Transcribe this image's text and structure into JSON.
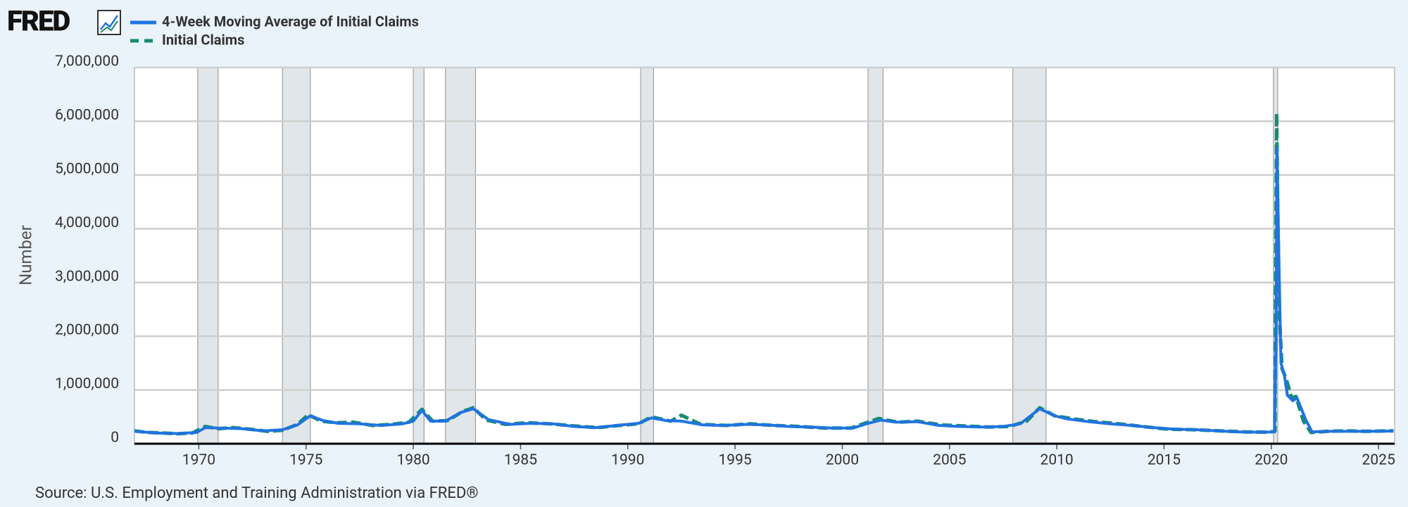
{
  "chart_data": {
    "type": "line",
    "logo": "FRED",
    "ylabel": "Number",
    "source": "Source: U.S. Employment and Training Administration via FRED®",
    "xlim": [
      1967.0,
      2025.75
    ],
    "ylim": [
      0,
      7000000
    ],
    "xticks": [
      1970,
      1975,
      1980,
      1985,
      1990,
      1995,
      2000,
      2005,
      2010,
      2015,
      2020,
      2025
    ],
    "yticks": [
      0,
      {
        "value": 1000000,
        "label": "1,000,000"
      },
      {
        "value": 2000000,
        "label": "2,000,000"
      },
      {
        "value": 3000000,
        "label": "3,000,000"
      },
      {
        "value": 4000000,
        "label": "4,000,000"
      },
      {
        "value": 5000000,
        "label": "5,000,000"
      },
      {
        "value": 6000000,
        "label": "6,000,000"
      },
      {
        "value": 7000000,
        "label": "7,000,000"
      }
    ],
    "grid": true,
    "recessions": [
      [
        1969.95,
        1970.9
      ],
      [
        1973.9,
        1975.2
      ],
      [
        1980.0,
        1980.5
      ],
      [
        1981.5,
        1982.9
      ],
      [
        1990.6,
        1991.2
      ],
      [
        2001.2,
        2001.9
      ],
      [
        2007.95,
        2009.5
      ],
      [
        2020.1,
        2020.3
      ]
    ],
    "series": [
      {
        "name": "Initial Claims",
        "color": "#178b72",
        "dash": true,
        "x": [
          1967.0,
          1967.6,
          1968.3,
          1969.0,
          1969.7,
          1970.3,
          1970.9,
          1971.6,
          1972.4,
          1973.2,
          1973.9,
          1974.6,
          1975.1,
          1975.7,
          1976.4,
          1977.2,
          1978.1,
          1979.0,
          1979.8,
          1980.4,
          1980.9,
          1981.6,
          1982.3,
          1982.8,
          1983.4,
          1984.3,
          1985.3,
          1986.4,
          1987.5,
          1988.6,
          1989.6,
          1990.5,
          1991.1,
          1992.0,
          1992.5,
          1993.4,
          1994.6,
          1995.7,
          1996.8,
          1998.0,
          1999.2,
          2000.4,
          2001.2,
          2001.7,
          2002.6,
          2003.5,
          2004.6,
          2005.7,
          2006.8,
          2007.8,
          2008.6,
          2009.2,
          2009.9,
          2010.8,
          2011.8,
          2012.9,
          2014.0,
          2015.2,
          2016.4,
          2017.6,
          2018.8,
          2019.8,
          2020.17,
          2020.21,
          2020.25,
          2020.3,
          2020.38,
          2020.5,
          2020.7,
          2020.95,
          2021.15,
          2021.5,
          2021.85,
          2022.6,
          2023.5,
          2024.4,
          2025.7
        ],
        "values": [
          240000,
          210000,
          200000,
          185000,
          200000,
          320000,
          280000,
          300000,
          270000,
          230000,
          250000,
          360000,
          540000,
          420000,
          390000,
          400000,
          340000,
          360000,
          400000,
          640000,
          420000,
          430000,
          600000,
          670000,
          440000,
          360000,
          390000,
          370000,
          330000,
          300000,
          340000,
          370000,
          500000,
          420000,
          530000,
          360000,
          340000,
          370000,
          340000,
          320000,
          290000,
          290000,
          400000,
          470000,
          400000,
          420000,
          350000,
          330000,
          310000,
          320000,
          420000,
          670000,
          520000,
          460000,
          410000,
          370000,
          320000,
          270000,
          260000,
          240000,
          220000,
          215000,
          230000,
          3300000,
          6150000,
          4400000,
          2400000,
          1400000,
          1200000,
          850000,
          880000,
          420000,
          210000,
          230000,
          240000,
          230000,
          240000
        ]
      },
      {
        "name": "4-Week Moving Average of Initial Claims",
        "color": "#1f74e0",
        "dash": false,
        "x": [
          1967.0,
          1968.0,
          1969.0,
          1969.9,
          1970.3,
          1971.0,
          1972.0,
          1973.0,
          1973.9,
          1974.6,
          1975.2,
          1975.8,
          1976.5,
          1977.5,
          1978.5,
          1979.5,
          1980.0,
          1980.4,
          1980.8,
          1981.5,
          1982.2,
          1982.8,
          1983.5,
          1984.5,
          1985.5,
          1986.5,
          1987.5,
          1988.5,
          1989.5,
          1990.5,
          1991.1,
          1991.8,
          1992.5,
          1993.5,
          1994.5,
          1995.5,
          1996.5,
          1997.5,
          1998.5,
          1999.5,
          2000.5,
          2001.2,
          2001.8,
          2002.5,
          2003.5,
          2004.5,
          2005.5,
          2006.5,
          2007.5,
          2008.3,
          2009.2,
          2009.9,
          2010.5,
          2011.5,
          2012.5,
          2013.5,
          2014.5,
          2015.5,
          2016.5,
          2017.5,
          2018.5,
          2019.5,
          2020.15,
          2020.22,
          2020.27,
          2020.35,
          2020.45,
          2020.6,
          2020.75,
          2021.0,
          2021.2,
          2021.6,
          2021.9,
          2022.5,
          2023.5,
          2024.5,
          2025.7
        ],
        "values": [
          230000,
          200000,
          190000,
          210000,
          300000,
          290000,
          280000,
          240000,
          260000,
          350000,
          520000,
          430000,
          380000,
          370000,
          340000,
          370000,
          420000,
          620000,
          420000,
          420000,
          580000,
          650000,
          450000,
          360000,
          380000,
          370000,
          320000,
          300000,
          340000,
          380000,
          480000,
          430000,
          420000,
          350000,
          340000,
          360000,
          350000,
          320000,
          310000,
          290000,
          290000,
          380000,
          440000,
          400000,
          410000,
          340000,
          320000,
          310000,
          320000,
          370000,
          650000,
          520000,
          460000,
          410000,
          370000,
          340000,
          300000,
          270000,
          260000,
          240000,
          220000,
          215000,
          220000,
          2000000,
          5500000,
          3500000,
          1500000,
          1300000,
          900000,
          800000,
          850000,
          450000,
          220000,
          230000,
          230000,
          230000,
          235000
        ]
      }
    ]
  }
}
